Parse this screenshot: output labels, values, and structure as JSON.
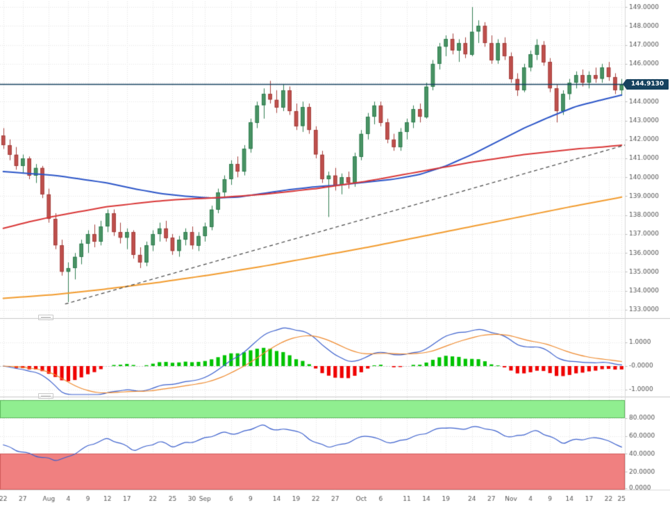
{
  "chart_data": {
    "type": "candlestick",
    "panels": [
      "price",
      "macd",
      "stochastic"
    ],
    "current_price": 144.913,
    "current_price_label": "144.9130",
    "price_axis": {
      "min": 133,
      "max": 149,
      "step": 1,
      "tick_labels": [
        "149.0000",
        "148.0000",
        "147.0000",
        "146.0000",
        "145.0000",
        "144.0000",
        "143.0000",
        "142.0000",
        "141.0000",
        "140.0000",
        "139.0000",
        "138.0000",
        "137.0000",
        "136.0000",
        "135.0000",
        "134.0000",
        "133.0000"
      ]
    },
    "x_ticks": [
      {
        "i": 0,
        "label": "22"
      },
      {
        "i": 3,
        "label": "27"
      },
      {
        "i": 7,
        "label": "Aug"
      },
      {
        "i": 10,
        "label": "4"
      },
      {
        "i": 13,
        "label": "9"
      },
      {
        "i": 16,
        "label": "12"
      },
      {
        "i": 19,
        "label": "17"
      },
      {
        "i": 23,
        "label": "22"
      },
      {
        "i": 26,
        "label": "25"
      },
      {
        "i": 29,
        "label": "30"
      },
      {
        "i": 31,
        "label": "Sep"
      },
      {
        "i": 35,
        "label": "6"
      },
      {
        "i": 38,
        "label": "9"
      },
      {
        "i": 42,
        "label": "14"
      },
      {
        "i": 45,
        "label": "19"
      },
      {
        "i": 48,
        "label": "22"
      },
      {
        "i": 51,
        "label": "27"
      },
      {
        "i": 55,
        "label": "Oct"
      },
      {
        "i": 58,
        "label": "6"
      },
      {
        "i": 62,
        "label": "11"
      },
      {
        "i": 65,
        "label": "14"
      },
      {
        "i": 68,
        "label": "19"
      },
      {
        "i": 72,
        "label": "24"
      },
      {
        "i": 75,
        "label": "27"
      },
      {
        "i": 78,
        "label": "Nov"
      },
      {
        "i": 81,
        "label": "4"
      },
      {
        "i": 84,
        "label": "9"
      },
      {
        "i": 87,
        "label": "14"
      },
      {
        "i": 90,
        "label": "17"
      },
      {
        "i": 93,
        "label": "22"
      },
      {
        "i": 95,
        "label": "25"
      }
    ],
    "candles": [
      [
        142.2,
        142.6,
        141.5,
        141.7
      ],
      [
        141.7,
        142.0,
        140.9,
        141.2
      ],
      [
        141.2,
        141.6,
        140.4,
        140.6
      ],
      [
        140.6,
        141.2,
        140.2,
        141.0
      ],
      [
        141.0,
        141.1,
        139.9,
        140.1
      ],
      [
        140.1,
        140.7,
        139.7,
        140.5
      ],
      [
        140.5,
        140.6,
        138.9,
        139.1
      ],
      [
        139.1,
        139.4,
        137.6,
        137.8
      ],
      [
        137.8,
        138.1,
        136.2,
        136.4
      ],
      [
        136.4,
        136.7,
        134.8,
        135.0
      ],
      [
        135.0,
        135.5,
        133.4,
        135.2
      ],
      [
        135.2,
        136.0,
        134.6,
        135.8
      ],
      [
        135.8,
        136.7,
        135.4,
        136.5
      ],
      [
        136.5,
        137.2,
        136.0,
        137.0
      ],
      [
        137.0,
        137.5,
        136.3,
        136.6
      ],
      [
        136.6,
        137.7,
        136.4,
        137.4
      ],
      [
        137.4,
        138.3,
        137.1,
        138.1
      ],
      [
        138.1,
        138.3,
        136.9,
        137.1
      ],
      [
        137.1,
        137.6,
        136.5,
        136.8
      ],
      [
        136.8,
        137.3,
        136.2,
        137.1
      ],
      [
        137.1,
        137.2,
        135.7,
        135.9
      ],
      [
        135.9,
        136.3,
        135.2,
        135.5
      ],
      [
        135.5,
        136.6,
        135.3,
        136.4
      ],
      [
        136.4,
        137.2,
        136.1,
        137.0
      ],
      [
        137.0,
        137.6,
        136.6,
        137.3
      ],
      [
        137.3,
        137.7,
        136.6,
        136.8
      ],
      [
        136.8,
        137.0,
        135.9,
        136.1
      ],
      [
        136.1,
        136.9,
        135.8,
        136.7
      ],
      [
        136.7,
        137.3,
        136.4,
        137.1
      ],
      [
        137.1,
        137.4,
        136.2,
        136.4
      ],
      [
        136.4,
        137.1,
        136.1,
        136.9
      ],
      [
        136.9,
        137.6,
        136.6,
        137.4
      ],
      [
        137.4,
        138.5,
        137.2,
        138.3
      ],
      [
        138.3,
        139.4,
        138.1,
        139.2
      ],
      [
        139.2,
        140.1,
        138.9,
        139.9
      ],
      [
        139.9,
        140.9,
        139.6,
        140.7
      ],
      [
        140.7,
        141.1,
        140.0,
        140.3
      ],
      [
        140.3,
        141.7,
        140.1,
        141.5
      ],
      [
        141.5,
        143.1,
        141.3,
        142.9
      ],
      [
        142.9,
        144.0,
        142.6,
        143.8
      ],
      [
        143.8,
        144.7,
        143.1,
        144.4
      ],
      [
        144.4,
        145.1,
        143.9,
        144.1
      ],
      [
        144.1,
        144.6,
        143.4,
        143.7
      ],
      [
        143.7,
        144.9,
        143.5,
        144.6
      ],
      [
        144.6,
        144.8,
        143.3,
        143.5
      ],
      [
        143.5,
        143.9,
        142.5,
        142.7
      ],
      [
        142.7,
        144.0,
        142.4,
        143.7
      ],
      [
        143.7,
        143.9,
        142.3,
        142.5
      ],
      [
        142.5,
        142.7,
        141.0,
        141.2
      ],
      [
        141.2,
        141.4,
        139.7,
        139.9
      ],
      [
        139.9,
        140.3,
        137.9,
        140.1
      ],
      [
        140.1,
        140.5,
        139.3,
        139.6
      ],
      [
        139.6,
        140.2,
        139.1,
        140.0
      ],
      [
        140.0,
        140.3,
        139.4,
        139.7
      ],
      [
        139.7,
        141.3,
        139.5,
        141.1
      ],
      [
        141.1,
        142.5,
        140.9,
        142.3
      ],
      [
        142.3,
        143.4,
        142.0,
        143.2
      ],
      [
        143.2,
        144.0,
        142.8,
        143.8
      ],
      [
        143.8,
        144.0,
        142.7,
        142.9
      ],
      [
        142.9,
        143.1,
        141.8,
        142.0
      ],
      [
        142.0,
        142.3,
        141.4,
        141.6
      ],
      [
        141.6,
        142.6,
        141.4,
        142.4
      ],
      [
        142.4,
        143.1,
        142.0,
        142.9
      ],
      [
        142.9,
        143.8,
        142.6,
        143.6
      ],
      [
        143.6,
        143.9,
        142.9,
        143.2
      ],
      [
        143.2,
        145.0,
        143.1,
        144.8
      ],
      [
        144.8,
        146.2,
        144.6,
        146.0
      ],
      [
        146.0,
        147.1,
        145.7,
        146.9
      ],
      [
        146.9,
        147.5,
        146.4,
        147.3
      ],
      [
        147.3,
        147.6,
        146.5,
        146.7
      ],
      [
        146.7,
        147.3,
        146.1,
        147.1
      ],
      [
        147.1,
        147.4,
        146.3,
        146.5
      ],
      [
        146.5,
        149.0,
        146.4,
        147.7
      ],
      [
        147.7,
        148.3,
        147.1,
        148.0
      ],
      [
        148.0,
        148.2,
        146.9,
        147.1
      ],
      [
        147.1,
        147.5,
        146.0,
        146.2
      ],
      [
        146.2,
        147.3,
        146.0,
        147.1
      ],
      [
        147.1,
        147.4,
        146.2,
        146.4
      ],
      [
        146.4,
        146.6,
        145.0,
        145.2
      ],
      [
        145.2,
        145.5,
        144.3,
        144.6
      ],
      [
        144.6,
        146.0,
        144.5,
        145.8
      ],
      [
        145.8,
        146.7,
        145.6,
        146.5
      ],
      [
        146.5,
        147.3,
        146.2,
        147.0
      ],
      [
        147.0,
        147.2,
        145.9,
        146.1
      ],
      [
        146.1,
        146.3,
        144.5,
        144.7
      ],
      [
        144.7,
        144.9,
        142.9,
        143.5
      ],
      [
        143.5,
        144.6,
        143.3,
        144.4
      ],
      [
        144.4,
        145.2,
        144.1,
        145.0
      ],
      [
        145.0,
        145.6,
        144.7,
        145.4
      ],
      [
        145.4,
        145.7,
        144.8,
        145.0
      ],
      [
        145.0,
        145.6,
        144.7,
        145.4
      ],
      [
        145.4,
        145.8,
        145.0,
        145.2
      ],
      [
        145.2,
        146.0,
        145.0,
        145.8
      ],
      [
        145.8,
        146.1,
        145.1,
        145.3
      ],
      [
        145.3,
        145.5,
        144.4,
        144.6
      ],
      [
        144.6,
        145.2,
        144.3,
        144.9
      ]
    ],
    "candle_colors": {
      "up": "#4a9465",
      "up_border": "#2f7d4f",
      "down": "#c0504d",
      "down_border": "#a43f3c"
    },
    "moving_averages": [
      {
        "name": "ma-fast-blue",
        "color": "#2b55c8",
        "points": [
          [
            0,
            140.3
          ],
          [
            4,
            140.2
          ],
          [
            8,
            140.1
          ],
          [
            12,
            139.9
          ],
          [
            16,
            139.7
          ],
          [
            20,
            139.4
          ],
          [
            24,
            139.15
          ],
          [
            28,
            139.0
          ],
          [
            32,
            138.9
          ],
          [
            36,
            138.95
          ],
          [
            40,
            139.15
          ],
          [
            44,
            139.35
          ],
          [
            48,
            139.5
          ],
          [
            52,
            139.6
          ],
          [
            56,
            139.75
          ],
          [
            60,
            139.9
          ],
          [
            64,
            140.15
          ],
          [
            68,
            140.6
          ],
          [
            72,
            141.2
          ],
          [
            76,
            141.9
          ],
          [
            80,
            142.6
          ],
          [
            84,
            143.2
          ],
          [
            88,
            143.75
          ],
          [
            92,
            144.1
          ],
          [
            95,
            144.35
          ]
        ]
      },
      {
        "name": "ma-medium-red",
        "color": "#d93636",
        "points": [
          [
            0,
            137.3
          ],
          [
            4,
            137.65
          ],
          [
            8,
            137.95
          ],
          [
            12,
            138.2
          ],
          [
            16,
            138.45
          ],
          [
            20,
            138.6
          ],
          [
            24,
            138.75
          ],
          [
            28,
            138.85
          ],
          [
            32,
            138.9
          ],
          [
            36,
            139.0
          ],
          [
            40,
            139.1
          ],
          [
            44,
            139.25
          ],
          [
            48,
            139.4
          ],
          [
            52,
            139.6
          ],
          [
            56,
            139.8
          ],
          [
            60,
            140.05
          ],
          [
            64,
            140.3
          ],
          [
            68,
            140.55
          ],
          [
            72,
            140.8
          ],
          [
            76,
            141.0
          ],
          [
            80,
            141.2
          ],
          [
            84,
            141.35
          ],
          [
            88,
            141.5
          ],
          [
            92,
            141.6
          ],
          [
            95,
            141.7
          ]
        ]
      },
      {
        "name": "ma-slow-orange",
        "color": "#f29b2d",
        "points": [
          [
            0,
            133.6
          ],
          [
            8,
            133.8
          ],
          [
            16,
            134.1
          ],
          [
            24,
            134.45
          ],
          [
            32,
            134.85
          ],
          [
            40,
            135.3
          ],
          [
            48,
            135.8
          ],
          [
            56,
            136.3
          ],
          [
            64,
            136.85
          ],
          [
            72,
            137.4
          ],
          [
            80,
            137.95
          ],
          [
            88,
            138.5
          ],
          [
            95,
            138.95
          ]
        ]
      }
    ],
    "trendline": {
      "color": "#444444",
      "dash": [
        5,
        4
      ],
      "from": [
        9.5,
        133.3
      ],
      "to": [
        96,
        141.7
      ]
    },
    "price_line": {
      "value": 144.913,
      "color": "#16425f"
    },
    "macd": {
      "tick_labels": [
        "1.0000",
        "-0.0000",
        "-1.0000"
      ],
      "tick_values": [
        1,
        0,
        -1
      ],
      "macd_color": "#3a5fcd",
      "signal_color": "#ef8a2e",
      "hist_up": "#00c300",
      "hist_down": "#ef0000",
      "derived_from": "candles",
      "peak_scale": 1.62
    },
    "stochastic": {
      "tick_labels": [
        "80.0000",
        "60.0000",
        "40.0000",
        "20.0000",
        "0.0000"
      ],
      "tick_values": [
        80,
        60,
        40,
        20,
        0
      ],
      "line_color": "#3a5fcd",
      "bands": [
        {
          "from": 80,
          "to": 100,
          "fill": "#90ee90",
          "edge": "#5cb85c"
        },
        {
          "from": 0,
          "to": 40,
          "fill": "#f08080",
          "edge": "#d05a5a"
        }
      ],
      "points": [
        [
          0,
          50
        ],
        [
          2,
          44
        ],
        [
          4,
          40
        ],
        [
          6,
          36
        ],
        [
          8,
          33
        ],
        [
          10,
          36
        ],
        [
          12,
          45
        ],
        [
          14,
          52
        ],
        [
          16,
          57
        ],
        [
          18,
          52
        ],
        [
          20,
          44
        ],
        [
          22,
          48
        ],
        [
          24,
          54
        ],
        [
          26,
          48
        ],
        [
          28,
          52
        ],
        [
          30,
          55
        ],
        [
          32,
          60
        ],
        [
          34,
          64
        ],
        [
          36,
          62
        ],
        [
          38,
          68
        ],
        [
          40,
          72
        ],
        [
          42,
          66
        ],
        [
          44,
          68
        ],
        [
          46,
          62
        ],
        [
          48,
          52
        ],
        [
          50,
          48
        ],
        [
          52,
          50
        ],
        [
          54,
          56
        ],
        [
          56,
          61
        ],
        [
          58,
          55
        ],
        [
          60,
          52
        ],
        [
          62,
          57
        ],
        [
          64,
          61
        ],
        [
          66,
          66
        ],
        [
          68,
          70
        ],
        [
          70,
          67
        ],
        [
          72,
          70
        ],
        [
          74,
          69
        ],
        [
          76,
          64
        ],
        [
          78,
          58
        ],
        [
          80,
          62
        ],
        [
          82,
          66
        ],
        [
          84,
          59
        ],
        [
          86,
          52
        ],
        [
          88,
          56
        ],
        [
          90,
          57
        ],
        [
          92,
          58
        ],
        [
          94,
          50
        ],
        [
          95,
          49
        ]
      ]
    }
  }
}
